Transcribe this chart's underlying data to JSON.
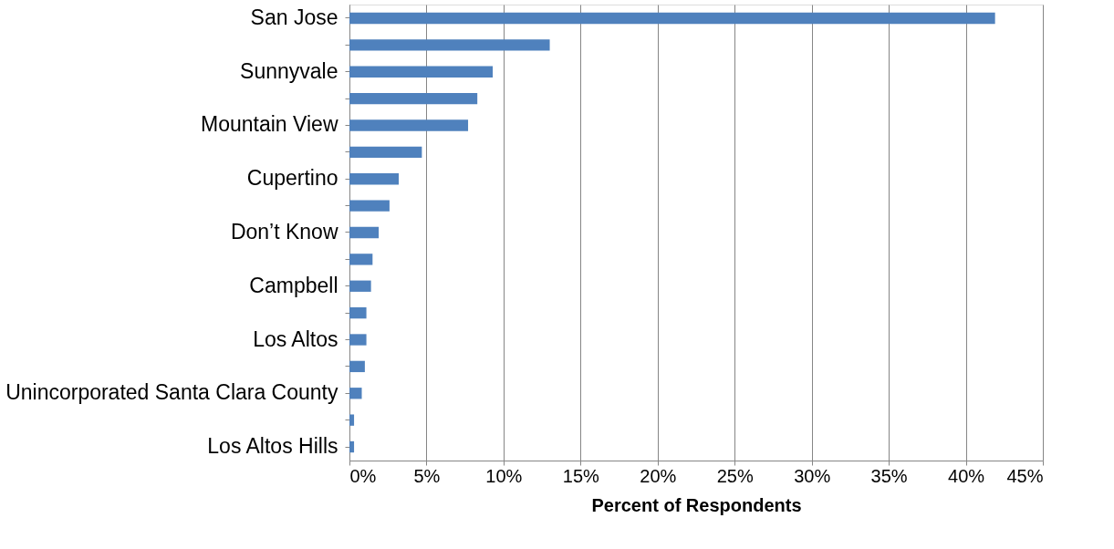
{
  "chart_data": {
    "type": "bar",
    "orientation": "horizontal",
    "xlabel": "Percent of Respondents",
    "categories": [
      "San Jose",
      null,
      "Sunnyvale",
      null,
      "Mountain View",
      null,
      "Cupertino",
      null,
      "Don’t Know",
      null,
      "Campbell",
      null,
      "Los Altos",
      null,
      "Unincorporated Santa Clara County",
      null,
      "Los Altos Hills"
    ],
    "values": [
      41.9,
      13.0,
      9.3,
      8.3,
      7.7,
      4.7,
      3.2,
      2.6,
      1.9,
      1.5,
      1.4,
      1.1,
      1.1,
      1.0,
      0.8,
      0.3,
      0.3
    ],
    "color": "#4f81bd",
    "xlim": [
      0,
      45
    ],
    "xticks": [
      {
        "value": 0,
        "label": "0%"
      },
      {
        "value": 5,
        "label": "5%"
      },
      {
        "value": 10,
        "label": "10%"
      },
      {
        "value": 15,
        "label": "15%"
      },
      {
        "value": 20,
        "label": "20%"
      },
      {
        "value": 25,
        "label": "25%"
      },
      {
        "value": 30,
        "label": "30%"
      },
      {
        "value": 35,
        "label": "35%"
      },
      {
        "value": 40,
        "label": "40%"
      },
      {
        "value": 45,
        "label": "45%"
      }
    ],
    "grid": "x"
  }
}
